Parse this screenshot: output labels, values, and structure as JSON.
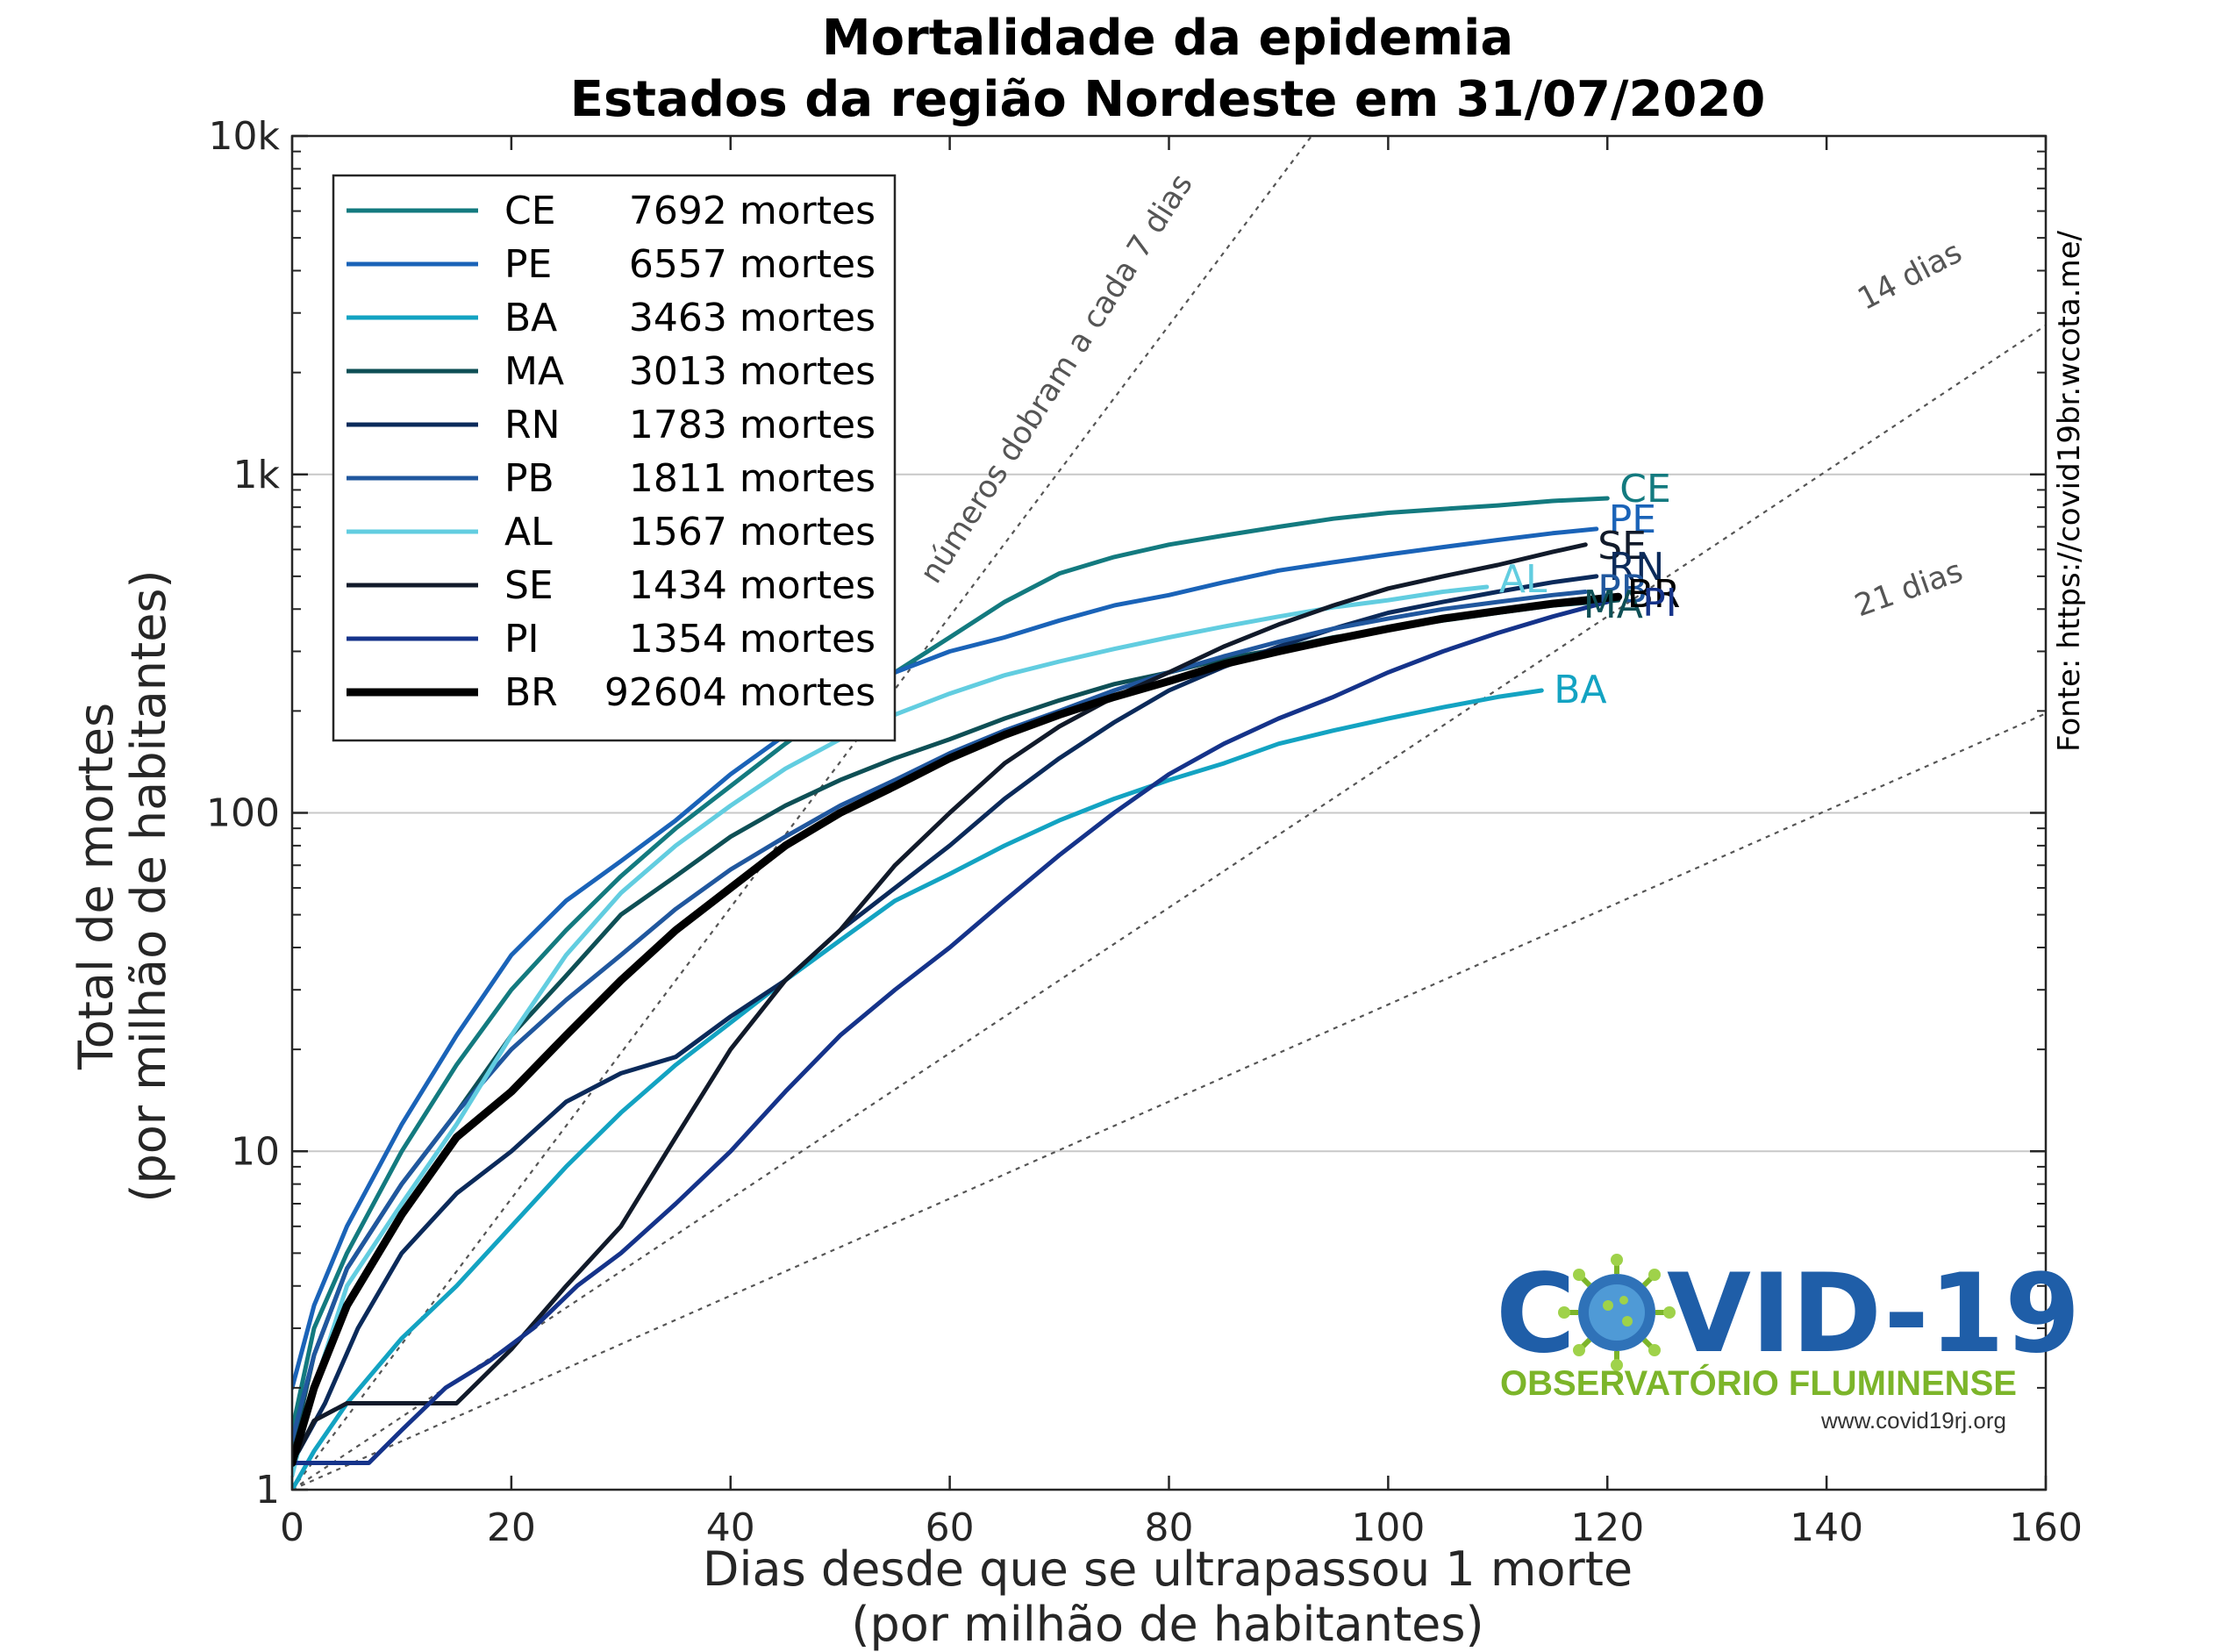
{
  "title_line1": "Mortalidade da epidemia",
  "title_line2": "Estados da região Nordeste em 31/07/2020",
  "source_text": "Fonte: https://covid19br.wcota.me/",
  "logo": {
    "title_left": "C",
    "title_right": "VID-19",
    "subtitle": "OBSERVATÓRIO FLUMINENSE",
    "url": "www.covid19rj.org",
    "icon": "coronavirus-icon"
  },
  "reference_lines": [
    {
      "label": "números dobram a cada 7 dias",
      "doubling_days": 7
    },
    {
      "label": "14 dias",
      "doubling_days": 14
    },
    {
      "label": "21 dias",
      "doubling_days": 21
    }
  ],
  "chart_data": {
    "type": "line",
    "title": "Mortalidade da epidemia — Estados da região Nordeste em 31/07/2020",
    "xlabel_line1": "Dias desde que se ultrapassou 1 morte",
    "xlabel_line2": "(por milhão de habitantes)",
    "ylabel_line1": "Total de mortes",
    "ylabel_line2": "(por milhão de habitantes)",
    "x_range": [
      0,
      160
    ],
    "y_range": [
      1,
      10000
    ],
    "y_scale": "log",
    "x_ticks": [
      0,
      20,
      40,
      60,
      80,
      100,
      120,
      140,
      160
    ],
    "x_tick_labels": [
      "0",
      "20",
      "40",
      "60",
      "80",
      "100",
      "120",
      "140",
      "160"
    ],
    "y_ticks": [
      1,
      10,
      100,
      1000,
      10000
    ],
    "y_tick_labels": [
      "1",
      "10",
      "100",
      "1k",
      "10k"
    ],
    "grid": "horizontal at decades",
    "legend_position": "top-left",
    "series": [
      {
        "name": "CE",
        "deaths": "7692 mortes",
        "color": "#137a7f",
        "width": 5,
        "label_color": "#137a7f",
        "x": [
          0,
          2,
          5,
          10,
          15,
          20,
          25,
          30,
          35,
          40,
          45,
          50,
          55,
          60,
          65,
          70,
          75,
          80,
          85,
          90,
          95,
          100,
          105,
          110,
          115,
          120
        ],
        "y": [
          1.5,
          3,
          5,
          10,
          18,
          30,
          45,
          65,
          90,
          120,
          160,
          210,
          260,
          330,
          420,
          510,
          570,
          620,
          660,
          700,
          740,
          770,
          790,
          810,
          835,
          850
        ]
      },
      {
        "name": "PE",
        "deaths": "6557 mortes",
        "color": "#1a63b8",
        "width": 5,
        "label_color": "#1a63b8",
        "x": [
          0,
          2,
          5,
          10,
          15,
          20,
          25,
          30,
          35,
          40,
          45,
          50,
          55,
          60,
          65,
          70,
          75,
          80,
          85,
          90,
          95,
          100,
          105,
          110,
          115,
          119
        ],
        "y": [
          2.0,
          3.5,
          6,
          12,
          22,
          38,
          55,
          72,
          95,
          130,
          170,
          210,
          260,
          300,
          330,
          370,
          410,
          440,
          480,
          520,
          550,
          580,
          610,
          640,
          670,
          690
        ]
      },
      {
        "name": "BA",
        "deaths": "3463 mortes",
        "color": "#13a3c2",
        "width": 5,
        "label_color": "#13a3c2",
        "x": [
          0,
          2,
          5,
          10,
          15,
          20,
          25,
          30,
          35,
          40,
          45,
          50,
          55,
          60,
          65,
          70,
          75,
          80,
          85,
          90,
          95,
          100,
          105,
          110,
          114
        ],
        "y": [
          1.0,
          1.3,
          1.8,
          2.8,
          4.0,
          6.0,
          9.0,
          13,
          18,
          24,
          32,
          42,
          55,
          66,
          80,
          95,
          110,
          125,
          140,
          160,
          175,
          190,
          205,
          220,
          230
        ]
      },
      {
        "name": "MA",
        "deaths": "3013 mortes",
        "color": "#0e4f55",
        "width": 5,
        "label_color": "#0e4f55",
        "x": [
          0,
          2,
          5,
          10,
          15,
          20,
          25,
          30,
          35,
          40,
          45,
          50,
          55,
          60,
          65,
          70,
          75,
          80,
          85,
          90,
          95,
          100,
          105,
          110,
          115,
          121
        ],
        "y": [
          1.3,
          2.5,
          4.5,
          8,
          13,
          22,
          33,
          50,
          65,
          85,
          105,
          125,
          145,
          165,
          190,
          215,
          240,
          260,
          285,
          305,
          330,
          350,
          370,
          390,
          410,
          425
        ]
      },
      {
        "name": "RN",
        "deaths": "1783 mortes",
        "color": "#0b2a5a",
        "width": 5,
        "label_color": "#0b2a5a",
        "x": [
          0,
          3,
          6,
          10,
          15,
          20,
          25,
          30,
          35,
          40,
          45,
          50,
          55,
          60,
          65,
          70,
          75,
          80,
          85,
          90,
          95,
          100,
          105,
          110,
          115,
          119
        ],
        "y": [
          1.2,
          1.8,
          3.0,
          5.0,
          7.5,
          10,
          14,
          17,
          19,
          25,
          32,
          45,
          60,
          80,
          110,
          145,
          185,
          230,
          270,
          310,
          350,
          390,
          420,
          450,
          480,
          500
        ]
      },
      {
        "name": "PB",
        "deaths": "1811 mortes",
        "color": "#20579e",
        "width": 5,
        "label_color": "#20579e",
        "x": [
          0,
          2,
          5,
          10,
          15,
          20,
          25,
          30,
          35,
          40,
          45,
          50,
          55,
          60,
          65,
          70,
          75,
          80,
          85,
          90,
          95,
          100,
          105,
          110,
          115,
          118
        ],
        "y": [
          1.4,
          2.5,
          4.5,
          8,
          13,
          20,
          28,
          38,
          52,
          68,
          85,
          105,
          125,
          150,
          175,
          200,
          230,
          260,
          290,
          320,
          350,
          375,
          400,
          420,
          440,
          450
        ]
      },
      {
        "name": "AL",
        "deaths": "1567 mortes",
        "color": "#62cde0",
        "width": 5,
        "label_color": "#62cde0",
        "x": [
          0,
          2,
          5,
          10,
          15,
          20,
          25,
          30,
          35,
          40,
          45,
          50,
          55,
          60,
          65,
          70,
          75,
          80,
          85,
          90,
          95,
          100,
          105,
          109
        ],
        "y": [
          1.1,
          2.0,
          4.0,
          7,
          12,
          22,
          38,
          58,
          80,
          105,
          135,
          165,
          195,
          225,
          255,
          280,
          305,
          330,
          355,
          380,
          405,
          425,
          450,
          465
        ]
      },
      {
        "name": "SE",
        "deaths": "1434 mortes",
        "color": "#111a2a",
        "width": 5,
        "label_color": "#111a2a",
        "x": [
          0,
          2,
          5,
          8,
          12,
          15,
          20,
          25,
          30,
          35,
          40,
          45,
          50,
          55,
          60,
          65,
          70,
          75,
          80,
          85,
          90,
          95,
          100,
          105,
          110,
          115,
          118
        ],
        "y": [
          1.2,
          1.6,
          1.8,
          1.8,
          1.8,
          1.8,
          2.6,
          4.0,
          6.0,
          11,
          20,
          32,
          45,
          70,
          100,
          140,
          180,
          220,
          260,
          310,
          360,
          410,
          460,
          500,
          540,
          590,
          620
        ]
      },
      {
        "name": "PI",
        "deaths": "1354 mortes",
        "color": "#15338a",
        "width": 5,
        "label_color": "#15338a",
        "x": [
          0,
          3,
          7,
          10,
          14,
          18,
          22,
          26,
          30,
          35,
          40,
          45,
          50,
          55,
          60,
          65,
          70,
          75,
          80,
          85,
          90,
          95,
          100,
          105,
          110,
          115,
          120
        ],
        "y": [
          1.2,
          1.2,
          1.2,
          1.5,
          2.0,
          2.4,
          3.0,
          4.0,
          5.0,
          7.0,
          10,
          15,
          22,
          30,
          40,
          55,
          75,
          100,
          130,
          160,
          190,
          220,
          260,
          300,
          340,
          380,
          420
        ]
      },
      {
        "name": "BR",
        "deaths": "92604 mortes",
        "color": "#000000",
        "width": 9,
        "label_color": "#000000",
        "x": [
          0,
          2,
          5,
          10,
          15,
          20,
          25,
          30,
          35,
          40,
          45,
          50,
          55,
          60,
          65,
          70,
          75,
          80,
          85,
          90,
          95,
          100,
          105,
          110,
          115,
          121
        ],
        "y": [
          1.2,
          2.0,
          3.5,
          6.5,
          11,
          15,
          22,
          32,
          45,
          60,
          80,
          100,
          120,
          145,
          170,
          195,
          220,
          245,
          275,
          300,
          325,
          350,
          375,
          395,
          415,
          435
        ]
      }
    ],
    "end_labels": [
      {
        "text": "CE",
        "series": "CE",
        "dx": 14,
        "dy": 4
      },
      {
        "text": "PE",
        "series": "PE",
        "dx": 14,
        "dy": 4
      },
      {
        "text": "SE",
        "series": "SE",
        "dx": 14,
        "dy": 16
      },
      {
        "text": "RN",
        "series": "RN",
        "dx": 14,
        "dy": 4
      },
      {
        "text": "AL",
        "series": "AL",
        "dx": 14,
        "dy": 6
      },
      {
        "text": "PB",
        "series": "PB",
        "dx": 14,
        "dy": 12
      },
      {
        "text": "MA",
        "series": "MA",
        "dx": -40,
        "dy": 20
      },
      {
        "text": "BR",
        "series": "BR",
        "dx": 10,
        "dy": 12
      },
      {
        "text": "PI",
        "series": "PI",
        "dx": 40,
        "dy": 16
      },
      {
        "text": "BA",
        "series": "BA",
        "dx": 14,
        "dy": 14
      }
    ]
  }
}
